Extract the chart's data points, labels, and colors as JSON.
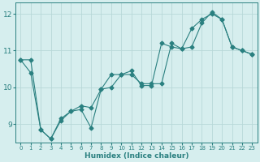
{
  "xlabel": "Humidex (Indice chaleur)",
  "bg_color": "#d6eeee",
  "line_color": "#2a8080",
  "grid_color": "#b8d8d8",
  "xlim": [
    -0.5,
    23.5
  ],
  "ylim": [
    8.5,
    12.3
  ],
  "xticks": [
    0,
    1,
    2,
    3,
    4,
    5,
    6,
    7,
    8,
    9,
    10,
    11,
    12,
    13,
    14,
    15,
    16,
    17,
    18,
    19,
    20,
    21,
    22,
    23
  ],
  "yticks": [
    9,
    10,
    11,
    12
  ],
  "series1_x": [
    0,
    1,
    2,
    3,
    4,
    5,
    6,
    7,
    8,
    9,
    10,
    11,
    12,
    13,
    14,
    15,
    16,
    17,
    18,
    19,
    20,
    21,
    22,
    23
  ],
  "series1_y": [
    10.75,
    10.4,
    8.85,
    8.6,
    9.15,
    9.35,
    9.4,
    8.9,
    9.95,
    10.35,
    10.35,
    10.45,
    10.05,
    10.05,
    11.2,
    11.1,
    11.05,
    11.6,
    11.85,
    12.0,
    11.85,
    11.1,
    11.0,
    10.9
  ],
  "series2_x": [
    0,
    1,
    2,
    3,
    4,
    5,
    6,
    7,
    8,
    9,
    10,
    11,
    12,
    13,
    14,
    15,
    16,
    17,
    18,
    19,
    20,
    21,
    22,
    23
  ],
  "series2_y": [
    10.75,
    10.75,
    8.85,
    8.6,
    9.1,
    9.35,
    9.5,
    9.45,
    9.95,
    10.0,
    10.35,
    10.35,
    10.1,
    10.1,
    10.1,
    11.2,
    11.05,
    11.1,
    11.75,
    12.05,
    11.85,
    11.1,
    11.0,
    10.9
  ],
  "marker": "D",
  "markersize": 2.5,
  "linewidth": 0.8
}
